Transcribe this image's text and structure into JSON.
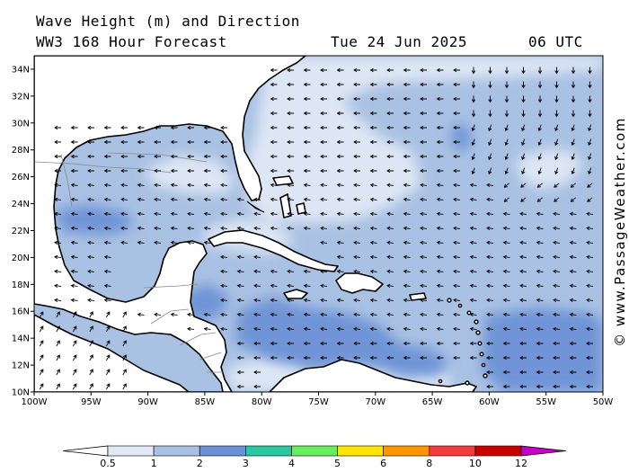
{
  "header": {
    "title": "Wave Height (m) and Direction",
    "subtitle": "WW3 168 Hour Forecast",
    "date": "Tue 24 Jun 2025",
    "time": "06 UTC"
  },
  "credit": "© www.PassageWeather.com",
  "map": {
    "lon_range": [
      -100,
      -50
    ],
    "lat_range": [
      10,
      35
    ],
    "lat_ticks": [
      {
        "value": 34,
        "label": "34N"
      },
      {
        "value": 32,
        "label": "32N"
      },
      {
        "value": 30,
        "label": "30N"
      },
      {
        "value": 28,
        "label": "28N"
      },
      {
        "value": 26,
        "label": "26N"
      },
      {
        "value": 24,
        "label": "24N"
      },
      {
        "value": 22,
        "label": "22N"
      },
      {
        "value": 20,
        "label": "20N"
      },
      {
        "value": 18,
        "label": "18N"
      },
      {
        "value": 16,
        "label": "16N"
      },
      {
        "value": 14,
        "label": "14N"
      },
      {
        "value": 12,
        "label": "12N"
      },
      {
        "value": 10,
        "label": "10N"
      }
    ],
    "lon_ticks": [
      {
        "value": -100,
        "label": "100W"
      },
      {
        "value": -95,
        "label": "95W"
      },
      {
        "value": -90,
        "label": "90W"
      },
      {
        "value": -85,
        "label": "85W"
      },
      {
        "value": -80,
        "label": "80W"
      },
      {
        "value": -75,
        "label": "75W"
      },
      {
        "value": -70,
        "label": "70W"
      },
      {
        "value": -65,
        "label": "65W"
      },
      {
        "value": -60,
        "label": "60W"
      },
      {
        "value": -55,
        "label": "55W"
      },
      {
        "value": -50,
        "label": "50W"
      }
    ],
    "colors": {
      "land": "#ffffff",
      "wave_0_5_to_1": "#dde6f4",
      "wave_1_to_2": "#a9c1e3",
      "wave_2_to_3": "#6f94d6"
    }
  },
  "colorbar": {
    "labels": [
      "0.5",
      "1",
      "2",
      "3",
      "4",
      "5",
      "6",
      "8",
      "10",
      "12"
    ],
    "colors": [
      "#e2e9f6",
      "#a8c0e4",
      "#6b91d6",
      "#2cc6a0",
      "#66ee5c",
      "#ffe600",
      "#ff9600",
      "#f03c3c",
      "#c80000",
      "#c800c8"
    ]
  }
}
